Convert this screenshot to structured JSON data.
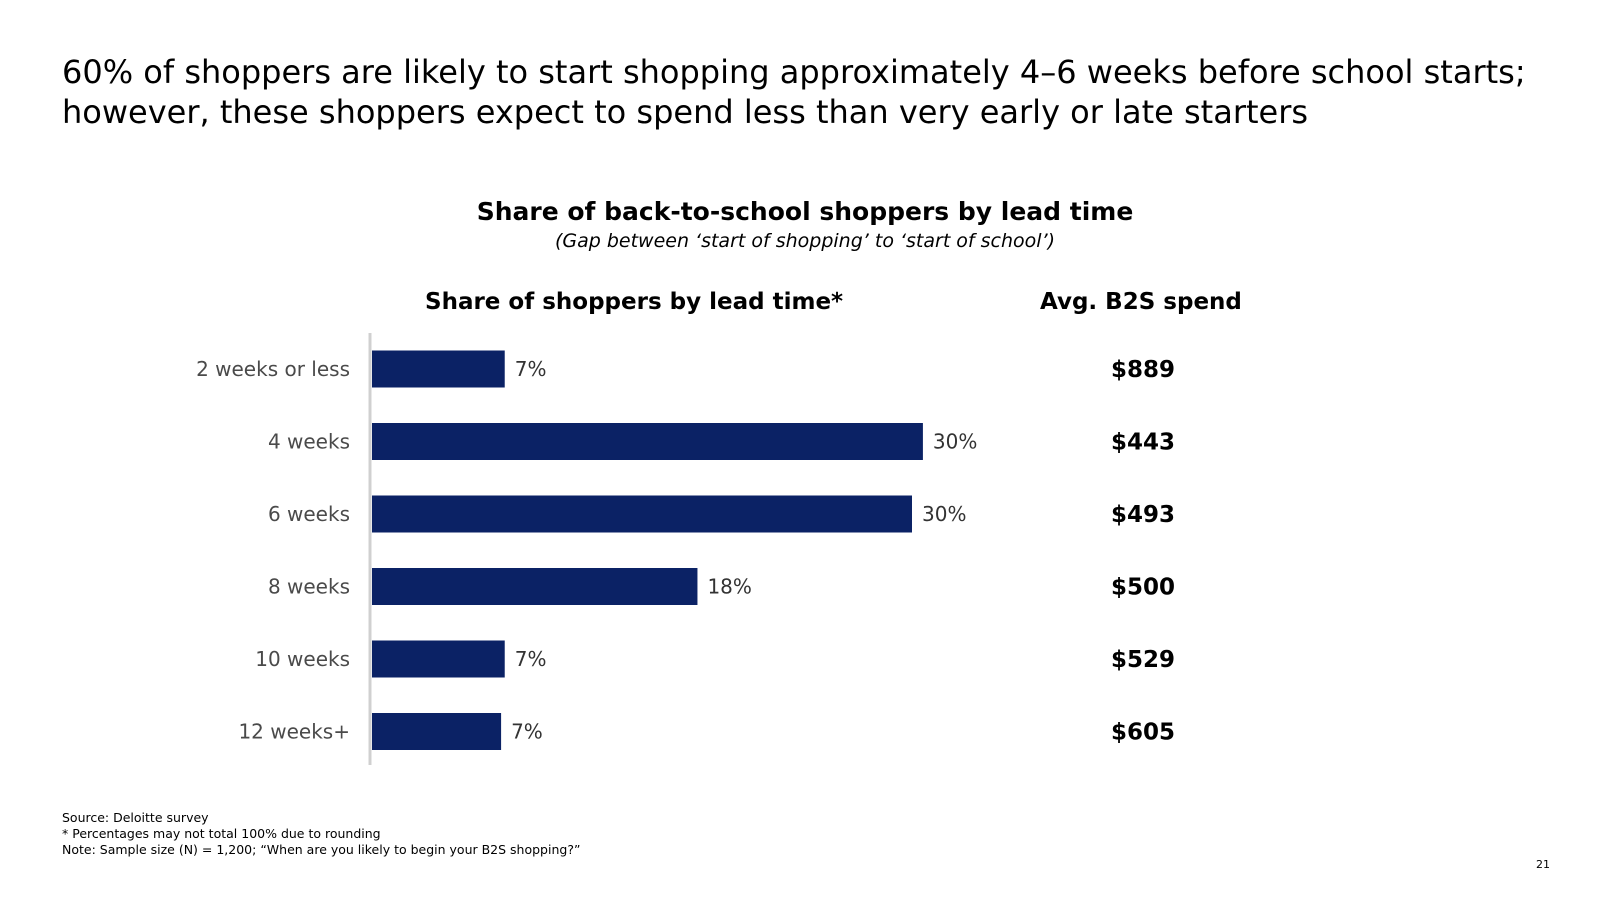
{
  "headline": "60% of shoppers are likely to start shopping approximately 4–6 weeks before school starts; however, these shoppers expect to spend less than very early or late starters",
  "chart_data": {
    "type": "bar",
    "orientation": "horizontal",
    "title": "Share of back-to-school shoppers by lead time",
    "subtitle": "(Gap between ‘start of shopping’ to ‘start of school’)",
    "share_heading": "Share of shoppers by lead time*",
    "spend_heading": "Avg. B2S spend",
    "categories": [
      "2 weeks or less",
      "4 weeks",
      "6 weeks",
      "8 weeks",
      "10 weeks",
      "12 weeks+"
    ],
    "values": [
      7,
      30,
      30,
      18,
      7,
      7
    ],
    "value_labels": [
      "7%",
      "30%",
      "30%",
      "18%",
      "7%",
      "7%"
    ],
    "plotted_values": [
      7.3,
      30.3,
      29.7,
      17.9,
      7.3,
      7.1
    ],
    "spend_labels": [
      "$889",
      "$443",
      "$493",
      "$500",
      "$529",
      "$605"
    ],
    "xlim": [
      0,
      33
    ],
    "grid": false,
    "bar_color": "#0b2265",
    "axis_color": "#d0d0d0"
  },
  "footnotes": {
    "source": "Source: Deloitte survey",
    "rounding": "* Percentages may not total 100% due to rounding",
    "note": "Note: Sample size (N) = 1,200; “When are you likely to begin your B2S shopping?”"
  },
  "page_number": "21"
}
